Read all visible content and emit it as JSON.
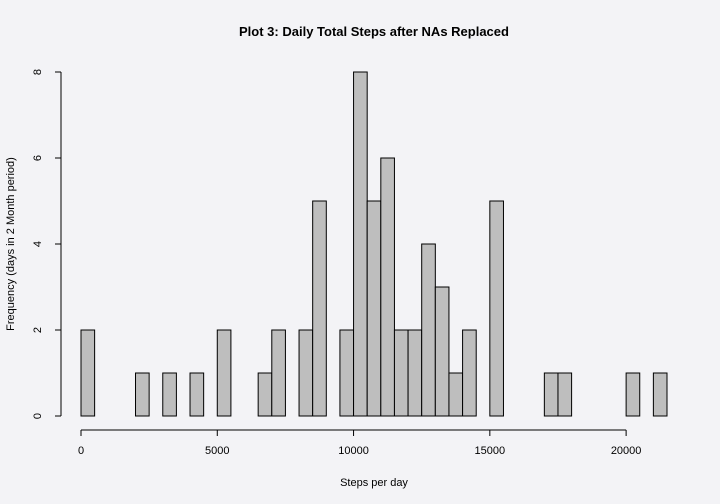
{
  "chart_data": {
    "type": "bar",
    "title": "Plot 3: Daily Total Steps after NAs Replaced",
    "xlabel": "Steps per day",
    "ylabel": "Frequency (days in 2 Month period)",
    "bin_width": 500,
    "bin_starts": [
      0,
      500,
      1000,
      1500,
      2000,
      2500,
      3000,
      3500,
      4000,
      4500,
      5000,
      5500,
      6000,
      6500,
      7000,
      7500,
      8000,
      8500,
      9000,
      9500,
      10000,
      10500,
      11000,
      11500,
      12000,
      12500,
      13000,
      13500,
      14000,
      14500,
      15000,
      15500,
      16000,
      16500,
      17000,
      17500,
      18000,
      18500,
      19000,
      19500,
      20000,
      20500,
      21000
    ],
    "values": [
      2,
      0,
      0,
      0,
      1,
      0,
      1,
      0,
      1,
      0,
      2,
      0,
      0,
      1,
      2,
      0,
      2,
      5,
      0,
      2,
      8,
      5,
      6,
      2,
      2,
      4,
      3,
      1,
      2,
      0,
      5,
      0,
      0,
      0,
      1,
      1,
      0,
      0,
      0,
      0,
      1,
      0,
      1
    ],
    "xlim": [
      0,
      21500
    ],
    "ylim": [
      0,
      8
    ],
    "x_ticks": [
      0,
      5000,
      10000,
      15000,
      20000
    ],
    "x_tick_labels": [
      "0",
      "5000",
      "10000",
      "15000",
      "20000"
    ],
    "y_ticks": [
      0,
      2,
      4,
      6,
      8
    ],
    "y_tick_labels": [
      "0",
      "2",
      "4",
      "6",
      "8"
    ],
    "grid": false,
    "colors": {
      "bar_fill": "#bebebe",
      "bar_stroke": "#000000",
      "background": "#f3f3f6"
    }
  }
}
